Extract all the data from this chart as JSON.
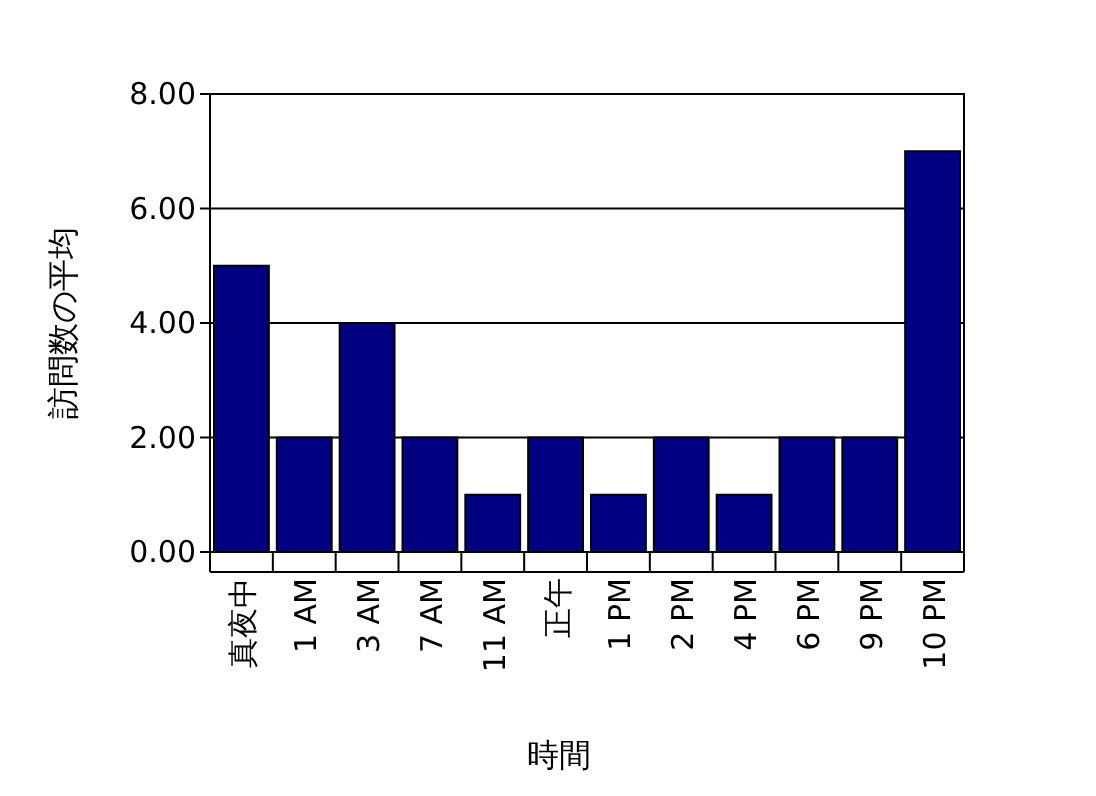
{
  "chart_data": {
    "type": "bar",
    "xlabel": "時間",
    "ylabel": "訪問数の平均",
    "categories": [
      "真夜中",
      "1 AM",
      "3 AM",
      "7 AM",
      "11 AM",
      "正午",
      "1 PM",
      "2 PM",
      "4 PM",
      "6 PM",
      "9 PM",
      "10 PM"
    ],
    "values": [
      5,
      2,
      4,
      2,
      1,
      2,
      1,
      2,
      1,
      2,
      2,
      7
    ],
    "color": "#000080",
    "ylim": [
      0,
      8
    ],
    "yticks": [
      {
        "value": 0,
        "label": "0.00"
      },
      {
        "value": 2,
        "label": "2.00"
      },
      {
        "value": 4,
        "label": "4.00"
      },
      {
        "value": 6,
        "label": "6.00"
      },
      {
        "value": 8,
        "label": "8.00"
      }
    ],
    "grid": "y"
  }
}
